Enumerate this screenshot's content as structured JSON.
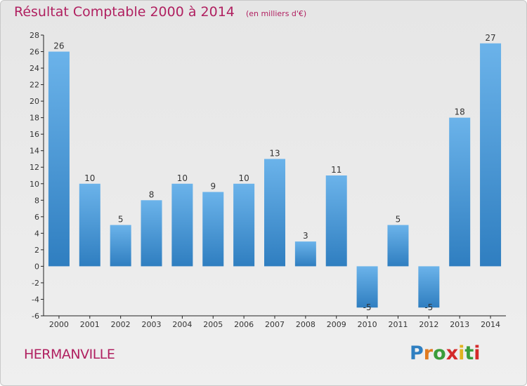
{
  "title": "Résultat Comptable 2000 à 2014",
  "subtitle": "(en milliers d'€)",
  "town": "HERMANVILLE",
  "brand": {
    "letters": [
      "P",
      "r",
      "o",
      "x",
      "i",
      "t",
      "i"
    ],
    "colors": [
      "#2f7fc1",
      "#e07a1f",
      "#3a9d3a",
      "#d42a2a",
      "#e0b21f",
      "#3a9d3a",
      "#d42a2a"
    ]
  },
  "colors": {
    "bar_top": "#6bb3ea",
    "bar_bottom": "#2f7ec0",
    "title": "#b02060",
    "axis": "#222222",
    "grid": "#c8c8c8"
  },
  "chart_data": {
    "type": "bar",
    "categories": [
      "2000",
      "2001",
      "2002",
      "2003",
      "2004",
      "2005",
      "2006",
      "2007",
      "2008",
      "2009",
      "2010",
      "2011",
      "2012",
      "2013",
      "2014"
    ],
    "values": [
      26,
      10,
      5,
      8,
      10,
      9,
      10,
      13,
      3,
      11,
      -5,
      5,
      -5,
      18,
      27
    ],
    "title": "Résultat Comptable 2000 à 2014",
    "subtitle": "(en milliers d'€)",
    "xlabel": "",
    "ylabel": "",
    "ylim": [
      -6,
      28
    ],
    "yticks": [
      -6,
      -4,
      -2,
      0,
      2,
      4,
      6,
      8,
      10,
      12,
      14,
      16,
      18,
      20,
      22,
      24,
      26,
      28
    ],
    "grid": false
  }
}
